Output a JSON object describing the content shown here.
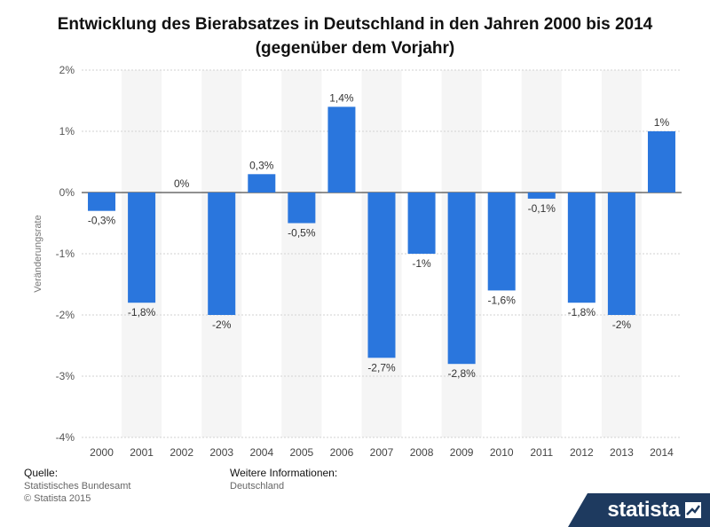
{
  "title": "Entwicklung des Bierabsatzes in Deutschland in den Jahren 2000 bis 2014 (gegenüber dem Vorjahr)",
  "footer": {
    "source_heading": "Quelle:",
    "source_line1": "Statistisches Bundesamt",
    "source_line2": "© Statista 2015",
    "info_heading": "Weitere Informationen:",
    "info_line1": "Deutschland"
  },
  "brand": {
    "name": "statista",
    "icon": "statista-logo-icon",
    "color": "#1e3a5f"
  },
  "chart_data": {
    "type": "bar",
    "title": "Entwicklung des Bierabsatzes in Deutschland in den Jahren 2000 bis 2014 (gegenüber dem Vorjahr)",
    "xlabel": "",
    "ylabel": "Veränderungsrate",
    "ylim": [
      -4,
      2
    ],
    "yticks": [
      2,
      1,
      0,
      -1,
      -2,
      -3,
      -4
    ],
    "ytick_labels": [
      "2%",
      "1%",
      "0%",
      "-1%",
      "-2%",
      "-3%",
      "-4%"
    ],
    "grid": true,
    "bar_color": "#2a76dd",
    "categories": [
      "2000",
      "2001",
      "2002",
      "2003",
      "2004",
      "2005",
      "2006",
      "2007",
      "2008",
      "2009",
      "2010",
      "2011",
      "2012",
      "2013",
      "2014"
    ],
    "values": [
      -0.3,
      -1.8,
      0,
      -2,
      0.3,
      -0.5,
      1.4,
      -2.7,
      -1,
      -2.8,
      -1.6,
      -0.1,
      -1.8,
      -2,
      1
    ],
    "data_labels": [
      "-0,3%",
      "-1,8%",
      "0%",
      "-2%",
      "0,3%",
      "-0,5%",
      "1,4%",
      "-2,7%",
      "-1%",
      "-2,8%",
      "-1,6%",
      "-0,1%",
      "-1,8%",
      "-2%",
      "1%"
    ]
  }
}
